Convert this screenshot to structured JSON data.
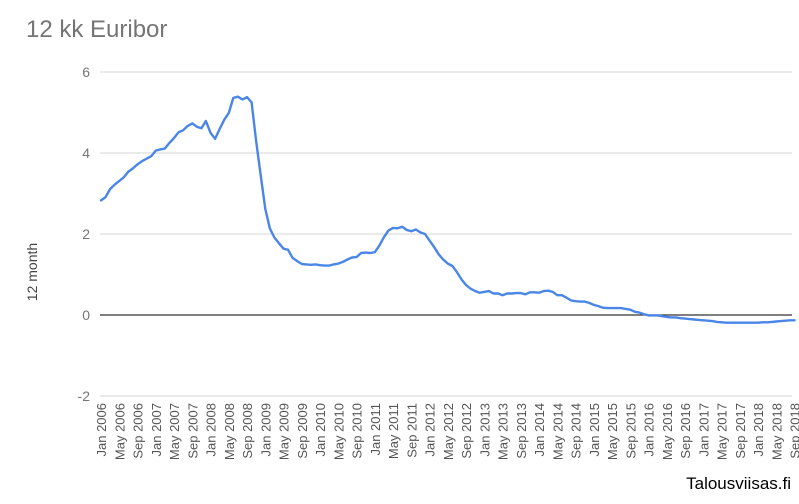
{
  "title": "12 kk Euribor",
  "watermark": "Talousviisas.fi",
  "chart_data": {
    "type": "line",
    "title": "12 kk Euribor",
    "xlabel": "",
    "ylabel": "12 month",
    "ylim": [
      -2,
      6
    ],
    "yticks": [
      6,
      4,
      2,
      0,
      -2
    ],
    "grid": true,
    "line_color": "#4a86e8",
    "zero_line_color": "#333333",
    "x_tick_labels": [
      "Jan 2006",
      "May 2006",
      "Sep 2006",
      "Jan 2007",
      "May 2007",
      "Sep 2007",
      "Jan 2008",
      "May 2008",
      "Sep 2008",
      "Jan 2009",
      "May 2009",
      "Sep 2009",
      "Jan 2010",
      "May 2010",
      "Sep 2010",
      "Jan 2011",
      "May 2011",
      "Sep 2011",
      "Jan 2012",
      "May 2012",
      "Sep 2012",
      "Jan 2013",
      "May 2013",
      "Sep 2013",
      "Jan 2014",
      "May 2014",
      "Sep 2014",
      "Jan 2015",
      "May 2015",
      "Sep 2015",
      "Jan 2016",
      "May 2016",
      "Sep 2016",
      "Jan 2017",
      "May 2017",
      "Sep 2017",
      "Jan 2018",
      "May 2018",
      "Sep 2018"
    ],
    "series": [
      {
        "x_start": "Jan 2006",
        "frequency": "monthly",
        "values": [
          2.83,
          2.91,
          3.11,
          3.22,
          3.31,
          3.4,
          3.54,
          3.62,
          3.72,
          3.8,
          3.86,
          3.92,
          4.06,
          4.09,
          4.11,
          4.25,
          4.37,
          4.51,
          4.56,
          4.67,
          4.73,
          4.65,
          4.61,
          4.79,
          4.5,
          4.35,
          4.59,
          4.82,
          4.99,
          5.36,
          5.39,
          5.32,
          5.38,
          5.25,
          4.3,
          3.45,
          2.62,
          2.14,
          1.91,
          1.77,
          1.64,
          1.61,
          1.41,
          1.33,
          1.26,
          1.25,
          1.24,
          1.25,
          1.23,
          1.22,
          1.22,
          1.25,
          1.27,
          1.31,
          1.37,
          1.42,
          1.43,
          1.53,
          1.54,
          1.53,
          1.55,
          1.71,
          1.92,
          2.09,
          2.15,
          2.14,
          2.18,
          2.1,
          2.07,
          2.11,
          2.04,
          2.0,
          1.84,
          1.68,
          1.5,
          1.37,
          1.27,
          1.21,
          1.06,
          0.88,
          0.74,
          0.65,
          0.59,
          0.55,
          0.57,
          0.59,
          0.53,
          0.53,
          0.49,
          0.53,
          0.53,
          0.54,
          0.54,
          0.51,
          0.56,
          0.56,
          0.55,
          0.59,
          0.6,
          0.57,
          0.49,
          0.49,
          0.43,
          0.36,
          0.34,
          0.33,
          0.33,
          0.3,
          0.25,
          0.22,
          0.18,
          0.17,
          0.17,
          0.17,
          0.17,
          0.15,
          0.13,
          0.08,
          0.06,
          0.02,
          -0.01,
          -0.01,
          -0.01,
          -0.03,
          -0.05,
          -0.06,
          -0.06,
          -0.08,
          -0.09,
          -0.1,
          -0.11,
          -0.12,
          -0.13,
          -0.14,
          -0.15,
          -0.17,
          -0.18,
          -0.19,
          -0.19,
          -0.19,
          -0.19,
          -0.19,
          -0.19,
          -0.19,
          -0.19,
          -0.18,
          -0.18,
          -0.17,
          -0.16,
          -0.15,
          -0.14,
          -0.13,
          -0.13
        ]
      }
    ]
  }
}
